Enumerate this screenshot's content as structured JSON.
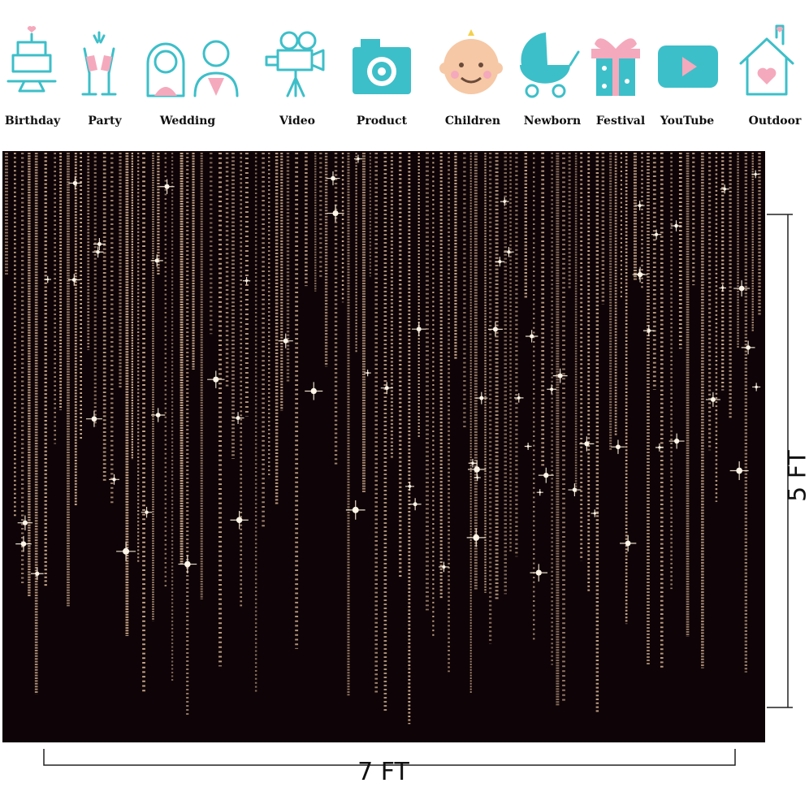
{
  "icons": [
    {
      "label": "Birthday"
    },
    {
      "label": "Party"
    },
    {
      "label": "Wedding"
    },
    {
      "label": "Video"
    },
    {
      "label": "Product"
    },
    {
      "label": "Children"
    },
    {
      "label": "Newborn"
    },
    {
      "label": "Festival"
    },
    {
      "label": "YouTube"
    },
    {
      "label": "Outdoor"
    }
  ],
  "dimensions": {
    "height": "5 FT",
    "width": "7 FT"
  }
}
